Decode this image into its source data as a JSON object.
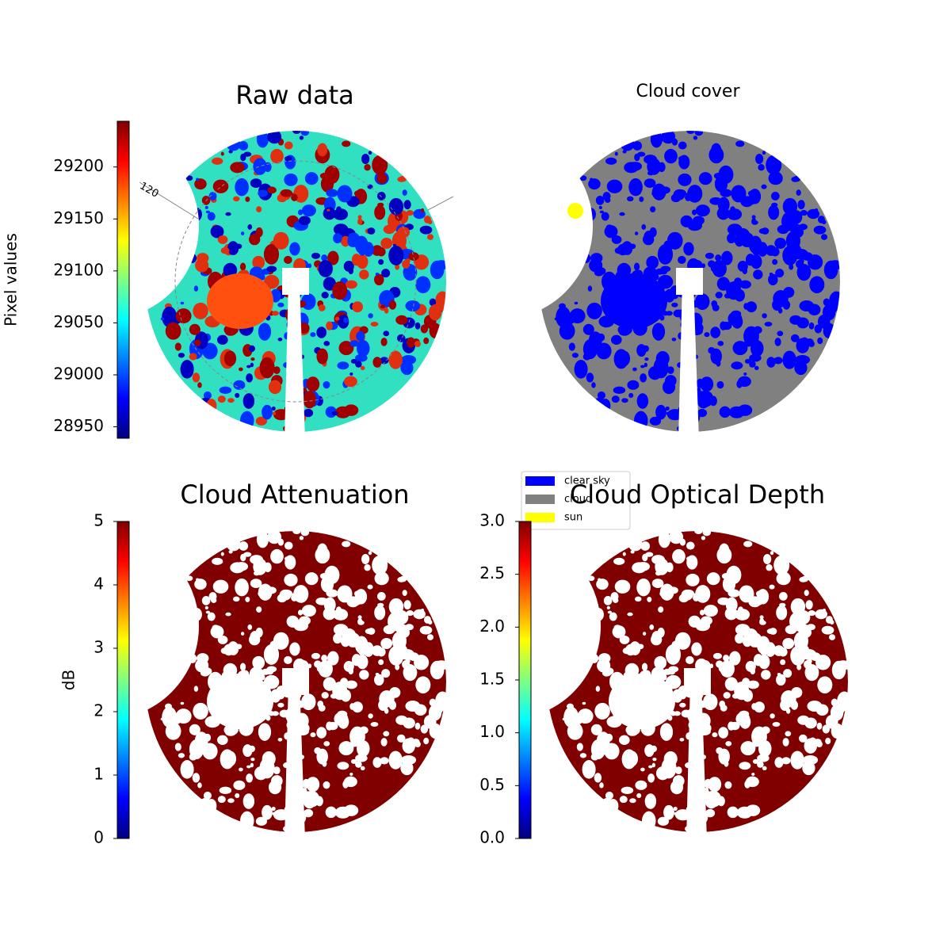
{
  "chart_data": [
    {
      "type": "image",
      "title": "Raw data",
      "colormap": "jet",
      "ylabel": "Pixel values",
      "ylim": [
        28939,
        29244
      ],
      "yticks": [
        28950,
        29000,
        29050,
        29100,
        29150,
        29200
      ],
      "annotations": [
        "120"
      ]
    },
    {
      "type": "image",
      "title": "Cloud cover",
      "series": [
        {
          "name": "clear sky",
          "color": "#0000ff"
        },
        {
          "name": "cloud",
          "color": "#808080"
        },
        {
          "name": "sun",
          "color": "#ffff00"
        }
      ],
      "legend": "lower left"
    },
    {
      "type": "image",
      "title": "Cloud Attenuation",
      "colormap": "jet",
      "ylabel": "dB",
      "ylim": [
        0,
        5
      ],
      "yticks": [
        0,
        1,
        2,
        3,
        4,
        5
      ]
    },
    {
      "type": "image",
      "title": "Cloud Optical Depth",
      "colormap": "jet",
      "ylim": [
        0,
        3
      ],
      "yticks": [
        {
          "value": 0,
          "label": "0.0"
        },
        {
          "value": 0.5,
          "label": "0.5"
        },
        {
          "value": 1,
          "label": "1.0"
        },
        {
          "value": 1.5,
          "label": "1.5"
        },
        {
          "value": 2,
          "label": "2.0"
        },
        {
          "value": 2.5,
          "label": "2.5"
        },
        {
          "value": 3,
          "label": "3.0"
        }
      ]
    }
  ]
}
